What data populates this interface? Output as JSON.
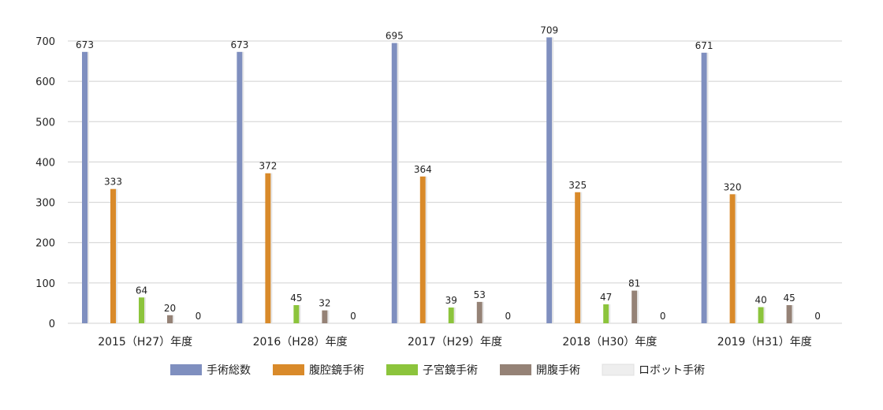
{
  "chart_data": {
    "type": "bar",
    "categories": [
      "2015（H27）年度",
      "2016（H28）年度",
      "2017（H29）年度",
      "2018（H30）年度",
      "2019（H31）年度"
    ],
    "series": [
      {
        "name": "手術総数",
        "values": [
          673,
          673,
          695,
          709,
          671
        ],
        "color": "#7f8fbf"
      },
      {
        "name": "腹腔鏡手術",
        "values": [
          333,
          372,
          364,
          325,
          320
        ],
        "color": "#d98a2a"
      },
      {
        "name": "子宮鏡手術",
        "values": [
          64,
          45,
          39,
          47,
          40
        ],
        "color": "#8cc43c"
      },
      {
        "name": "開腹手術",
        "values": [
          20,
          32,
          53,
          81,
          45
        ],
        "color": "#958276"
      },
      {
        "name": "ロボット手術",
        "values": [
          0,
          0,
          0,
          0,
          0
        ],
        "color": "#eeeeee"
      }
    ],
    "ylim": [
      0,
      700
    ],
    "yticks": [
      0,
      100,
      200,
      300,
      400,
      500,
      600,
      700
    ],
    "grid": true,
    "legend_position": "bottom"
  }
}
